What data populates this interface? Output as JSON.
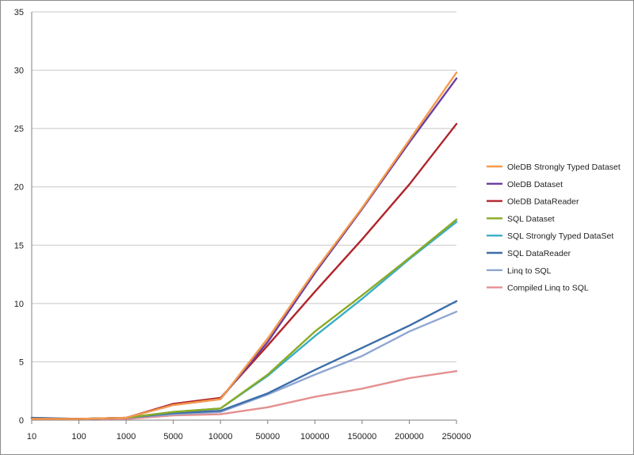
{
  "chart_data": {
    "type": "line",
    "title": "",
    "xlabel": "",
    "ylabel": "",
    "categories": [
      "10",
      "100",
      "1000",
      "5000",
      "10000",
      "50000",
      "100000",
      "150000",
      "200000",
      "250000"
    ],
    "ylim": [
      0,
      35
    ],
    "yticks": [
      0,
      5,
      10,
      15,
      20,
      25,
      30,
      35
    ],
    "grid": "horizontal",
    "legend_position": "right",
    "series": [
      {
        "name": "OleDB Strongly Typed Dataset",
        "color": "#f59a4a",
        "values": [
          0.1,
          0.1,
          0.2,
          1.3,
          1.8,
          7.0,
          12.8,
          18.2,
          24.0,
          29.8
        ]
      },
      {
        "name": "OleDB Dataset",
        "color": "#6a3fa0",
        "values": [
          0.1,
          0.1,
          0.2,
          1.3,
          1.8,
          6.7,
          12.6,
          18.1,
          23.8,
          29.3
        ]
      },
      {
        "name": "OleDB DataReader",
        "color": "#b0242a",
        "values": [
          0.1,
          0.1,
          0.2,
          1.4,
          1.9,
          6.4,
          11.0,
          15.5,
          20.2,
          25.4
        ]
      },
      {
        "name": "SQL  Dataset",
        "color": "#8aaa24",
        "values": [
          0.1,
          0.1,
          0.2,
          0.7,
          1.0,
          3.9,
          7.6,
          10.7,
          13.9,
          17.2
        ]
      },
      {
        "name": "SQL Strongly Typed DataSet",
        "color": "#3aaec6",
        "values": [
          0.1,
          0.1,
          0.2,
          0.7,
          1.0,
          3.8,
          7.2,
          10.4,
          13.8,
          17.0
        ]
      },
      {
        "name": "SQL DataReader",
        "color": "#3c6ea8",
        "values": [
          0.2,
          0.1,
          0.2,
          0.6,
          0.8,
          2.3,
          4.3,
          6.2,
          8.1,
          10.2
        ]
      },
      {
        "name": "Linq to SQL",
        "color": "#8fa6d2",
        "values": [
          0.2,
          0.1,
          0.2,
          0.5,
          0.7,
          2.2,
          3.9,
          5.5,
          7.6,
          9.3
        ]
      },
      {
        "name": "Compiled Linq to SQL",
        "color": "#e49090",
        "values": [
          0.1,
          0.1,
          0.1,
          0.4,
          0.5,
          1.1,
          2.0,
          2.7,
          3.6,
          4.2
        ]
      }
    ]
  }
}
